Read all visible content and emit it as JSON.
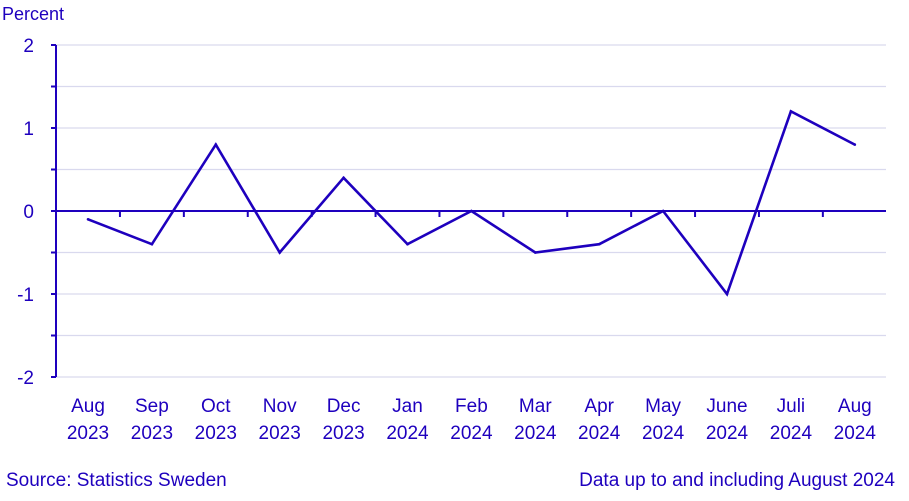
{
  "chart_data": {
    "type": "line",
    "ylabel": "Percent",
    "categories": [
      [
        "Aug",
        "2023"
      ],
      [
        "Sep",
        "2023"
      ],
      [
        "Oct",
        "2023"
      ],
      [
        "Nov",
        "2023"
      ],
      [
        "Dec",
        "2023"
      ],
      [
        "Jan",
        "2024"
      ],
      [
        "Feb",
        "2024"
      ],
      [
        "Mar",
        "2024"
      ],
      [
        "Apr",
        "2024"
      ],
      [
        "May",
        "2024"
      ],
      [
        "June",
        "2024"
      ],
      [
        "Juli",
        "2024"
      ],
      [
        "Aug",
        "2024"
      ]
    ],
    "series": [
      {
        "values": [
          -0.1,
          -0.4,
          0.8,
          -0.5,
          0.4,
          -0.4,
          0.0,
          -0.5,
          -0.4,
          0.0,
          -1.0,
          1.2,
          0.8
        ]
      }
    ],
    "ylim": [
      -2,
      2
    ],
    "yticks": [
      "2",
      "1",
      "0",
      "-1",
      "-2"
    ],
    "grid": true
  },
  "footer": {
    "source": "Source: Statistics Sweden",
    "note": "Data up to and including August 2024"
  },
  "colors": {
    "line": "#1e00be",
    "axis": "#1e00be",
    "grid": "#d9d9ee"
  }
}
